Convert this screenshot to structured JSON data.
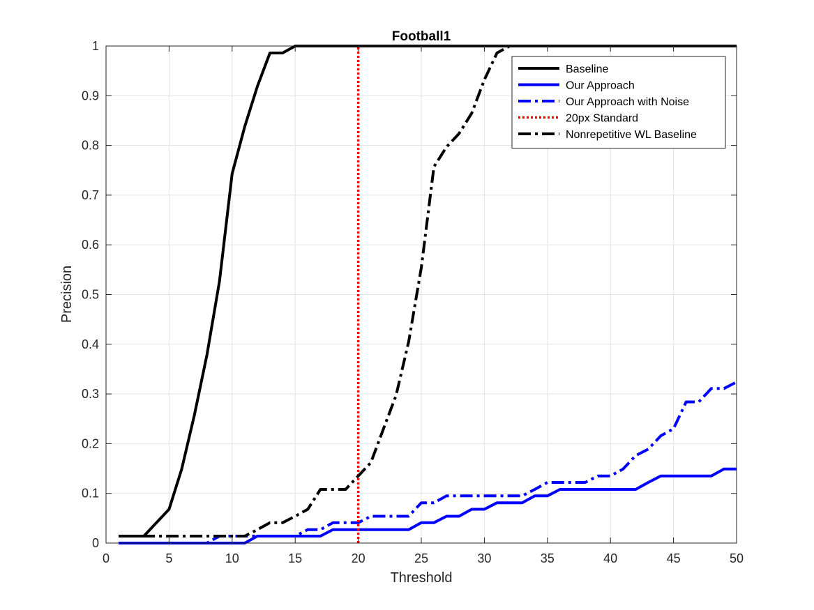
{
  "chart_data": {
    "type": "line",
    "title": "Football1",
    "xlabel": "Threshold",
    "ylabel": "Precision",
    "xlim": [
      0,
      50
    ],
    "ylim": [
      0,
      1
    ],
    "xticks": [
      0,
      5,
      10,
      15,
      20,
      25,
      30,
      35,
      40,
      45,
      50
    ],
    "yticks": [
      0,
      0.1,
      0.2,
      0.3,
      0.4,
      0.5,
      0.6,
      0.7,
      0.8,
      0.9,
      1
    ],
    "grid": true,
    "legend_position": "top-right",
    "series": [
      {
        "name": "Baseline",
        "color": "#000000",
        "style": "solid",
        "x": [
          1,
          2,
          3,
          4,
          5,
          6,
          7,
          8,
          9,
          10,
          11,
          12,
          13,
          14,
          15,
          16,
          20,
          30,
          40,
          50
        ],
        "y": [
          0.014,
          0.014,
          0.014,
          0.041,
          0.068,
          0.149,
          0.257,
          0.378,
          0.527,
          0.743,
          0.838,
          0.919,
          0.986,
          0.986,
          1.0,
          1.0,
          1.0,
          1.0,
          1.0,
          1.0
        ]
      },
      {
        "name": "Our Approach",
        "color": "#0000ff",
        "style": "solid",
        "x": [
          1,
          11,
          12,
          16,
          17,
          18,
          24,
          25,
          26,
          27,
          28,
          29,
          30,
          31,
          32,
          33,
          34,
          35,
          36,
          37,
          41,
          42,
          43,
          44,
          48,
          49,
          50
        ],
        "y": [
          0.0,
          0.0,
          0.014,
          0.014,
          0.014,
          0.027,
          0.027,
          0.041,
          0.041,
          0.054,
          0.054,
          0.068,
          0.068,
          0.081,
          0.081,
          0.081,
          0.095,
          0.095,
          0.108,
          0.108,
          0.108,
          0.108,
          0.122,
          0.135,
          0.135,
          0.149,
          0.149
        ]
      },
      {
        "name": "Our Approach with Noise",
        "color": "#0000ff",
        "style": "dashdot",
        "x": [
          1,
          8,
          9,
          11,
          12,
          15,
          16,
          17,
          18,
          19,
          20,
          21,
          22,
          23,
          24,
          25,
          26,
          27,
          28,
          29,
          30,
          31,
          32,
          33,
          34,
          35,
          36,
          37,
          38,
          39,
          40,
          41,
          42,
          43,
          44,
          45,
          46,
          47,
          48,
          49,
          50
        ],
        "y": [
          0.0,
          0.0,
          0.014,
          0.014,
          0.014,
          0.014,
          0.027,
          0.027,
          0.041,
          0.041,
          0.041,
          0.054,
          0.054,
          0.054,
          0.054,
          0.081,
          0.081,
          0.095,
          0.095,
          0.095,
          0.095,
          0.095,
          0.095,
          0.095,
          0.108,
          0.122,
          0.122,
          0.122,
          0.122,
          0.135,
          0.135,
          0.149,
          0.176,
          0.189,
          0.216,
          0.23,
          0.284,
          0.284,
          0.311,
          0.311,
          0.324
        ]
      },
      {
        "name": "20px Standard",
        "color": "#ff0000",
        "style": "dotted",
        "x": [
          20,
          20
        ],
        "y": [
          0,
          1
        ]
      },
      {
        "name": "Nonrepetitive WL Baseline",
        "color": "#000000",
        "style": "dashdot",
        "x": [
          1,
          2,
          3,
          4,
          5,
          6,
          7,
          8,
          9,
          10,
          11,
          12,
          13,
          14,
          15,
          16,
          17,
          18,
          19,
          20,
          21,
          22,
          23,
          24,
          25,
          26,
          27,
          28,
          29,
          30,
          31,
          32,
          33,
          40,
          50
        ],
        "y": [
          0.014,
          0.014,
          0.014,
          0.014,
          0.014,
          0.014,
          0.014,
          0.014,
          0.014,
          0.014,
          0.014,
          0.027,
          0.041,
          0.041,
          0.054,
          0.068,
          0.108,
          0.108,
          0.108,
          0.135,
          0.162,
          0.23,
          0.297,
          0.405,
          0.554,
          0.757,
          0.797,
          0.824,
          0.865,
          0.932,
          0.986,
          1.0,
          1.0,
          1.0,
          1.0
        ]
      }
    ]
  }
}
